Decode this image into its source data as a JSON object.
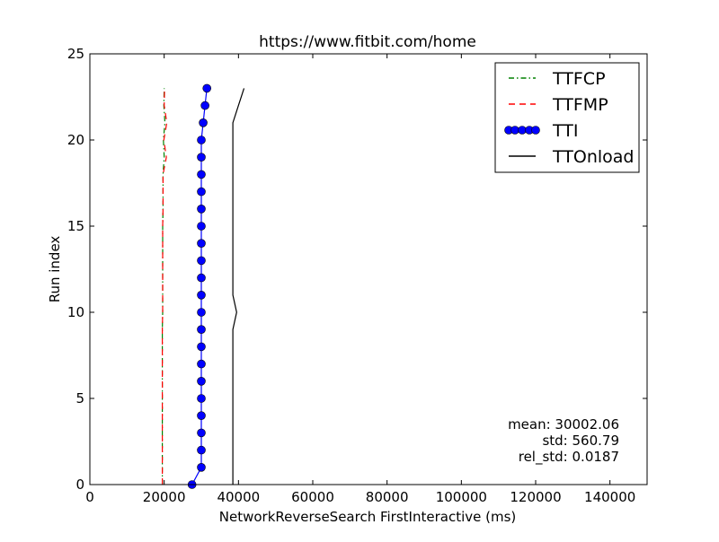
{
  "chart_data": {
    "type": "line",
    "title": "https://www.fitbit.com/home",
    "xlabel": "NetworkReverseSearch FirstInteractive (ms)",
    "ylabel": "Run index",
    "xlim": [
      0,
      150000
    ],
    "ylim": [
      0,
      25
    ],
    "xticks": [
      0,
      20000,
      40000,
      60000,
      80000,
      100000,
      120000,
      140000
    ],
    "xtick_labels": [
      "0",
      "20000",
      "40000",
      "60000",
      "80000",
      "100000",
      "120000",
      "140000"
    ],
    "yticks": [
      0,
      5,
      10,
      15,
      20,
      25
    ],
    "ytick_labels": [
      "0",
      "5",
      "10",
      "15",
      "20",
      "25"
    ],
    "grid": false,
    "legend_position": "top-right",
    "series": [
      {
        "name": "TTFCP",
        "color": "#008000",
        "dash": "dashdot",
        "marker": "none",
        "y": [
          0,
          1,
          2,
          3,
          4,
          5,
          6,
          7,
          8,
          9,
          10,
          11,
          12,
          13,
          14,
          15,
          16,
          17,
          18,
          19,
          20,
          21,
          22,
          23
        ],
        "x": [
          19500,
          19500,
          19500,
          19500,
          19500,
          19500,
          19500,
          19500,
          19500,
          19500,
          19600,
          19600,
          19600,
          19600,
          19600,
          19600,
          19700,
          19700,
          19700,
          20000,
          19800,
          20200,
          19900,
          20000
        ]
      },
      {
        "name": "TTFMP",
        "color": "#ff0000",
        "dash": "dashed",
        "marker": "none",
        "y": [
          0,
          1,
          2,
          3,
          4,
          5,
          6,
          7,
          8,
          9,
          10,
          11,
          12,
          13,
          14,
          15,
          16,
          17,
          18,
          19,
          20,
          21,
          22,
          23
        ],
        "x": [
          19500,
          19500,
          19500,
          19500,
          19500,
          19500,
          19500,
          19500,
          19500,
          19500,
          19600,
          19600,
          19600,
          19600,
          19600,
          19600,
          19700,
          19700,
          19700,
          20600,
          19900,
          20700,
          20000,
          20100
        ]
      },
      {
        "name": "TTI",
        "color": "#0000ff",
        "dash": "solid",
        "marker": "circle",
        "y": [
          0,
          1,
          2,
          3,
          4,
          5,
          6,
          7,
          8,
          9,
          10,
          11,
          12,
          13,
          14,
          15,
          16,
          17,
          18,
          19,
          20,
          21,
          22,
          23
        ],
        "x": [
          27500,
          30000,
          30000,
          30000,
          30000,
          30000,
          30000,
          30000,
          30000,
          30000,
          30000,
          30000,
          30000,
          30000,
          30000,
          30000,
          30000,
          30000,
          30000,
          30000,
          30000,
          30500,
          31000,
          31500
        ]
      },
      {
        "name": "TTOnload",
        "color": "#000000",
        "dash": "solid",
        "marker": "none",
        "y": [
          0,
          1,
          2,
          3,
          4,
          5,
          6,
          7,
          8,
          9,
          10,
          11,
          12,
          13,
          14,
          15,
          16,
          17,
          18,
          19,
          20,
          21,
          22,
          23
        ],
        "x": [
          38500,
          38500,
          38500,
          38500,
          38500,
          38500,
          38500,
          38500,
          38500,
          38500,
          39500,
          38500,
          38500,
          38500,
          38500,
          38500,
          38500,
          38500,
          38500,
          38500,
          38500,
          38500,
          40000,
          41500
        ]
      }
    ],
    "stats": [
      "mean: 30002.06",
      "std: 560.79",
      "rel_std: 0.0187"
    ]
  }
}
